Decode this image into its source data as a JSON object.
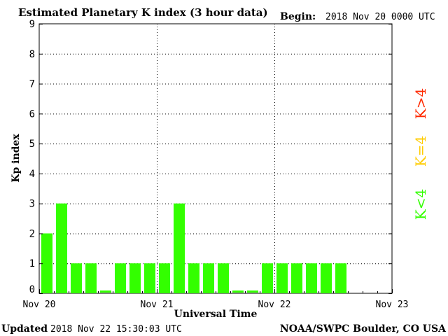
{
  "header": {
    "begin_label": "Begin:",
    "begin_value": "2018 Nov 20 0000 UTC"
  },
  "footer": {
    "updated_label": "Updated",
    "updated_value": "2018 Nov 22 15:30:03 UTC",
    "source": "NOAA/SWPC Boulder, CO USA"
  },
  "legend": {
    "high": {
      "text": "K>4",
      "color": "#ff2a00"
    },
    "equal": {
      "text": "K=4",
      "color": "#ffcc00"
    },
    "low": {
      "text": "K<4",
      "color": "#33ff00"
    }
  },
  "colors": {
    "bar": "#33ff00",
    "grid": "#000000",
    "axis": "#000000"
  },
  "chart_data": {
    "type": "bar",
    "title": "Estimated Planetary K index (3 hour data)",
    "xlabel": "Universal Time",
    "ylabel": "Kp index",
    "ylim": [
      0,
      9
    ],
    "yticks": [
      0,
      1,
      2,
      3,
      4,
      5,
      6,
      7,
      8,
      9
    ],
    "xticks": [
      "Nov 20",
      "Nov 21",
      "Nov 22",
      "Nov 23"
    ],
    "interval_hours": 3,
    "grid": true,
    "series": [
      {
        "values": [
          2,
          3,
          1,
          1,
          0,
          1,
          1,
          1,
          1,
          3,
          1,
          1,
          1,
          0,
          0,
          1,
          1,
          1,
          1,
          1,
          1
        ]
      }
    ]
  }
}
